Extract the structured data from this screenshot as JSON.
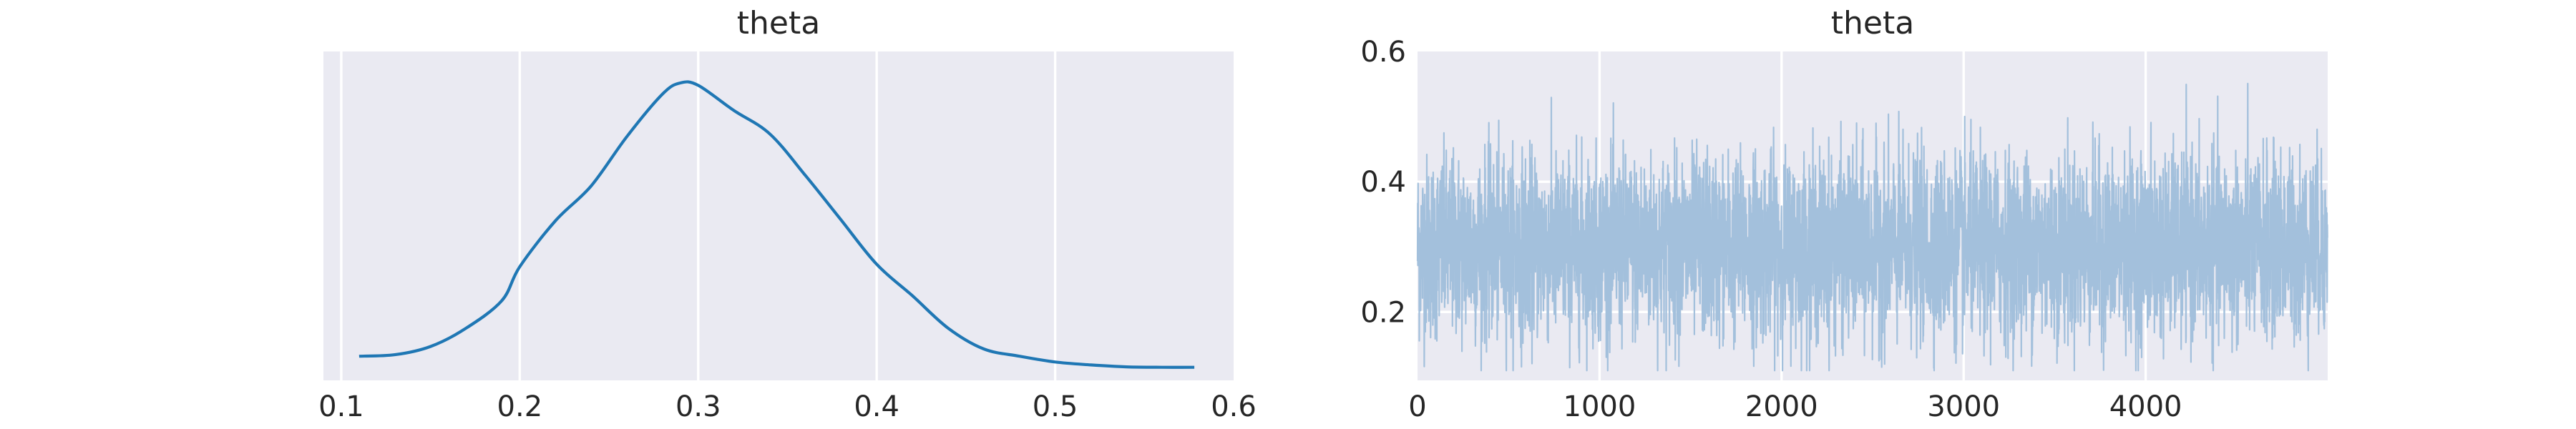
{
  "chart_data": [
    {
      "type": "line",
      "title": "theta",
      "xlabel": "",
      "ylabel": "",
      "xlim": [
        0.09,
        0.6
      ],
      "ylim": [
        0,
        6.8
      ],
      "xticks": [
        0.1,
        0.2,
        0.3,
        0.4,
        0.5,
        0.6
      ],
      "yticks": [],
      "grid": true,
      "series": [
        {
          "color": "#1f77b4",
          "x": [
            0.11,
            0.13,
            0.15,
            0.17,
            0.19,
            0.2,
            0.22,
            0.24,
            0.26,
            0.28,
            0.29,
            0.3,
            0.32,
            0.34,
            0.36,
            0.38,
            0.4,
            0.42,
            0.44,
            0.46,
            0.48,
            0.5,
            0.52,
            0.54,
            0.56,
            0.578
          ],
          "y": [
            0.5,
            0.53,
            0.7,
            1.08,
            1.65,
            2.35,
            3.3,
            4.02,
            5.04,
            5.92,
            6.15,
            6.1,
            5.58,
            5.1,
            4.24,
            3.32,
            2.4,
            1.75,
            1.08,
            0.65,
            0.5,
            0.38,
            0.32,
            0.28,
            0.27,
            0.27
          ]
        }
      ]
    },
    {
      "type": "line",
      "title": "theta",
      "xlabel": "",
      "ylabel": "",
      "xlim": [
        0,
        5000
      ],
      "ylim": [
        0.095,
        0.6
      ],
      "xticks": [
        0,
        1000,
        2000,
        3000,
        4000
      ],
      "yticks": [
        0.2,
        0.4,
        0.6
      ],
      "grid": true,
      "series": [
        {
          "color": "#a3c0dc",
          "n_draws": 5000,
          "mean": 0.3,
          "sd": 0.07,
          "min": 0.11,
          "max": 0.58
        }
      ]
    }
  ]
}
